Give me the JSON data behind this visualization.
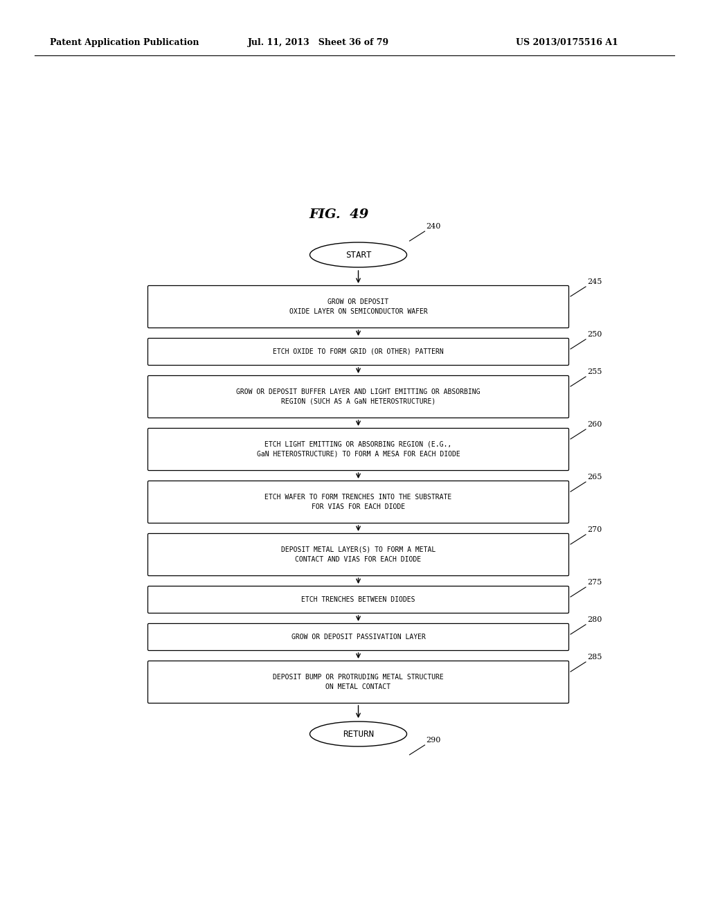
{
  "title": "FIG.  49",
  "header_left": "Patent Application Publication",
  "header_mid": "Jul. 11, 2013   Sheet 36 of 79",
  "header_right": "US 2013/0175516 A1",
  "background_color": "#ffffff",
  "text_color": "#000000",
  "box_color": "#ffffff",
  "box_edge_color": "#000000",
  "start_label": "START",
  "start_ref": "240",
  "end_label": "RETURN",
  "end_ref": "290",
  "steps": [
    {
      "ref": "245",
      "text": "GROW OR DEPOSIT\nOXIDE LAYER ON SEMICONDUCTOR WAFER"
    },
    {
      "ref": "250",
      "text": "ETCH OXIDE TO FORM GRID (OR OTHER) PATTERN"
    },
    {
      "ref": "255",
      "text": "GROW OR DEPOSIT BUFFER LAYER AND LIGHT EMITTING OR ABSORBING\nREGION (SUCH AS A GaN HETEROSTRUCTURE)"
    },
    {
      "ref": "260",
      "text": "ETCH LIGHT EMITTING OR ABSORBING REGION (E.G.,\nGaN HETEROSTRUCTURE) TO FORM A MESA FOR EACH DIODE"
    },
    {
      "ref": "265",
      "text": "ETCH WAFER TO FORM TRENCHES INTO THE SUBSTRATE\nFOR VIAS FOR EACH DIODE"
    },
    {
      "ref": "270",
      "text": "DEPOSIT METAL LAYER(S) TO FORM A METAL\nCONTACT AND VIAS FOR EACH DIODE"
    },
    {
      "ref": "275",
      "text": "ETCH TRENCHES BETWEEN DIODES"
    },
    {
      "ref": "280",
      "text": "GROW OR DEPOSIT PASSIVATION LAYER"
    },
    {
      "ref": "285",
      "text": "DEPOSIT BUMP OR PROTRUDING METAL STRUCTURE\nON METAL CONTACT"
    }
  ]
}
